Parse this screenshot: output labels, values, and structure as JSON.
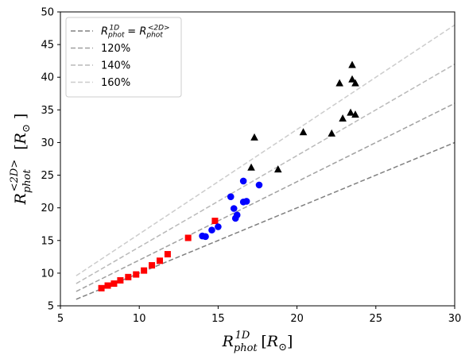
{
  "chart_data": {
    "type": "scatter",
    "xlabel": "R_phot^1D [R_⊙]",
    "ylabel": "R_phot^<2D> [R_⊙]",
    "xlim": [
      5,
      30
    ],
    "ylim": [
      5,
      50
    ],
    "xticks": [
      "5",
      "10",
      "15",
      "20",
      "25",
      "30"
    ],
    "yticks": [
      "5",
      "10",
      "15",
      "20",
      "25",
      "30",
      "35",
      "40",
      "45",
      "50"
    ],
    "grid": false,
    "legend_placement": "top-left",
    "lines": [
      {
        "name": "R_phot^1D = R_phot^<2D>",
        "factor": 1.0,
        "x_range": [
          6,
          30
        ],
        "color": "#808080",
        "opacity": 1.0
      },
      {
        "name": "120%",
        "factor": 1.2,
        "x_range": [
          6,
          30
        ],
        "color": "#808080",
        "opacity": 0.75
      },
      {
        "name": "140%",
        "factor": 1.4,
        "x_range": [
          6,
          30
        ],
        "color": "#808080",
        "opacity": 0.55
      },
      {
        "name": "160%",
        "factor": 1.6,
        "x_range": [
          6,
          30
        ],
        "color": "#808080",
        "opacity": 0.4
      }
    ],
    "series": [
      {
        "marker": "square",
        "color": "#ff0000",
        "points": [
          [
            7.6,
            7.7
          ],
          [
            8.0,
            8.1
          ],
          [
            8.4,
            8.4
          ],
          [
            8.8,
            8.9
          ],
          [
            9.3,
            9.4
          ],
          [
            9.8,
            9.8
          ],
          [
            10.3,
            10.4
          ],
          [
            10.8,
            11.2
          ],
          [
            11.3,
            11.9
          ],
          [
            11.8,
            12.9
          ],
          [
            13.1,
            15.4
          ],
          [
            14.8,
            18.0
          ]
        ]
      },
      {
        "marker": "circle",
        "color": "#0000ff",
        "points": [
          [
            14.0,
            15.7
          ],
          [
            14.2,
            15.6
          ],
          [
            14.6,
            16.6
          ],
          [
            15.0,
            17.1
          ],
          [
            15.8,
            21.7
          ],
          [
            16.0,
            19.9
          ],
          [
            16.1,
            18.4
          ],
          [
            16.2,
            18.9
          ],
          [
            16.6,
            20.9
          ],
          [
            16.6,
            24.1
          ],
          [
            16.8,
            21.0
          ],
          [
            17.6,
            23.5
          ]
        ]
      },
      {
        "marker": "triangle",
        "color": "#000000",
        "points": [
          [
            17.1,
            26.2
          ],
          [
            17.3,
            30.8
          ],
          [
            18.8,
            25.9
          ],
          [
            20.4,
            31.6
          ],
          [
            22.2,
            31.4
          ],
          [
            22.7,
            39.1
          ],
          [
            22.9,
            33.7
          ],
          [
            23.4,
            34.6
          ],
          [
            23.5,
            41.9
          ],
          [
            23.5,
            39.7
          ],
          [
            23.7,
            34.3
          ],
          [
            23.7,
            39.1
          ]
        ]
      }
    ]
  }
}
